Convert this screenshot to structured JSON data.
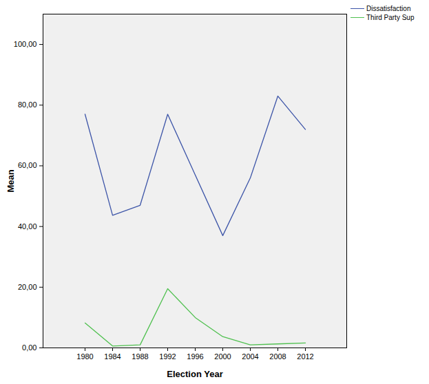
{
  "chart_data": {
    "type": "line",
    "x_label": "Election Year",
    "y_label": "Mean",
    "categories": [
      "1980",
      "1984",
      "1988",
      "1992",
      "1996",
      "2000",
      "2004",
      "2008",
      "2012"
    ],
    "series": [
      {
        "name": "Dissatisfaction",
        "color": "#3d55a8",
        "values": [
          77,
          43.7,
          47,
          77,
          57,
          37,
          56,
          83,
          72
        ]
      },
      {
        "name": "Third Party Sup",
        "color": "#4fc04f",
        "values": [
          8.2,
          0.6,
          1,
          19.5,
          10,
          3.7,
          1,
          1.3,
          1.6
        ]
      }
    ],
    "ylim": [
      0,
      110
    ],
    "yticks": [
      {
        "value": 0,
        "label": "0,00"
      },
      {
        "value": 20,
        "label": "20,00"
      },
      {
        "value": 40,
        "label": "40,00"
      },
      {
        "value": 60,
        "label": "60,00"
      },
      {
        "value": 80,
        "label": "80,00"
      },
      {
        "value": 100,
        "label": "100,00"
      }
    ],
    "grid": false,
    "legend": "top-right"
  }
}
